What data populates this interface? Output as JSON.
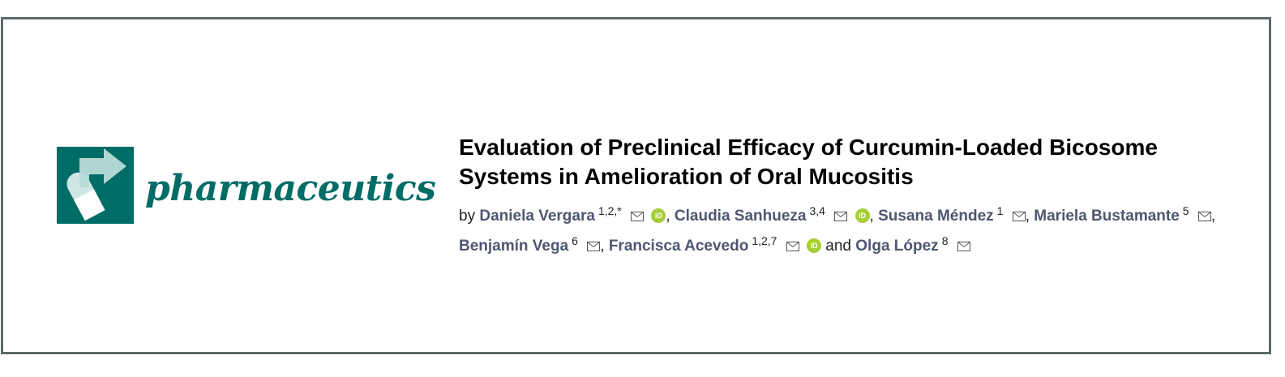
{
  "journal": {
    "name": "pharmaceutics",
    "brand_color": "#006c66"
  },
  "article": {
    "title": "Evaluation of Preclinical Efficacy of Curcumin-Loaded Bicosome Systems in Amelioration of Oral Mucositis",
    "by_label": "by",
    "and_label": "and",
    "orcid_label": "iD",
    "authors": [
      {
        "name": "Daniela Vergara",
        "aff": "1,2,*"
      },
      {
        "name": "Claudia Sanhueza",
        "aff": "3,4"
      },
      {
        "name": "Susana Méndez",
        "aff": "1"
      },
      {
        "name": "Mariela Bustamante",
        "aff": "5"
      },
      {
        "name": "Benjamín Vega",
        "aff": "6"
      },
      {
        "name": "Francisca Acevedo",
        "aff": "1,2,7"
      },
      {
        "name": "Olga López",
        "aff": "8"
      }
    ]
  },
  "colors": {
    "author_link": "#4f5671",
    "orcid": "#a6ce39",
    "frame_border": "#5c6a6a"
  }
}
